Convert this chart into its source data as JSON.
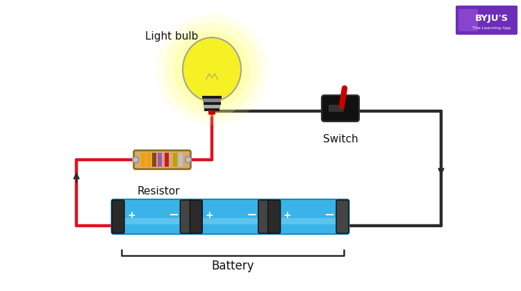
{
  "bg_color": "#ffffff",
  "wire_color": "#2a2a2a",
  "red_wire_color": "#e01020",
  "battery_blue": "#3ab4e8",
  "battery_dark_cap": "#2a2a2a",
  "battery_mid_cap": "#444444",
  "battery_highlight": "#7fd4f5",
  "resistor_body": "#d4aa70",
  "resistor_edge": "#8B6914",
  "bulb_yellow": "#f5f020",
  "bulb_glow": "#fff176",
  "bulb_glass_edge": "#888888",
  "bulb_base_dark": "#1a1a1a",
  "bulb_base_silver": "#aaaaaa",
  "switch_body": "#111111",
  "switch_lever": "#cc0000",
  "label_color": "#111111",
  "label_fs": 11,
  "band_colors": [
    "#f5a623",
    "#8b4513",
    "#9b59b6",
    "#e8282a",
    "#c0a000"
  ],
  "battery_label": "Battery",
  "bulb_label": "Light bulb",
  "resistor_label": "Resistor",
  "switch_label": "Switch",
  "byju_purple": "#6c2eb9"
}
